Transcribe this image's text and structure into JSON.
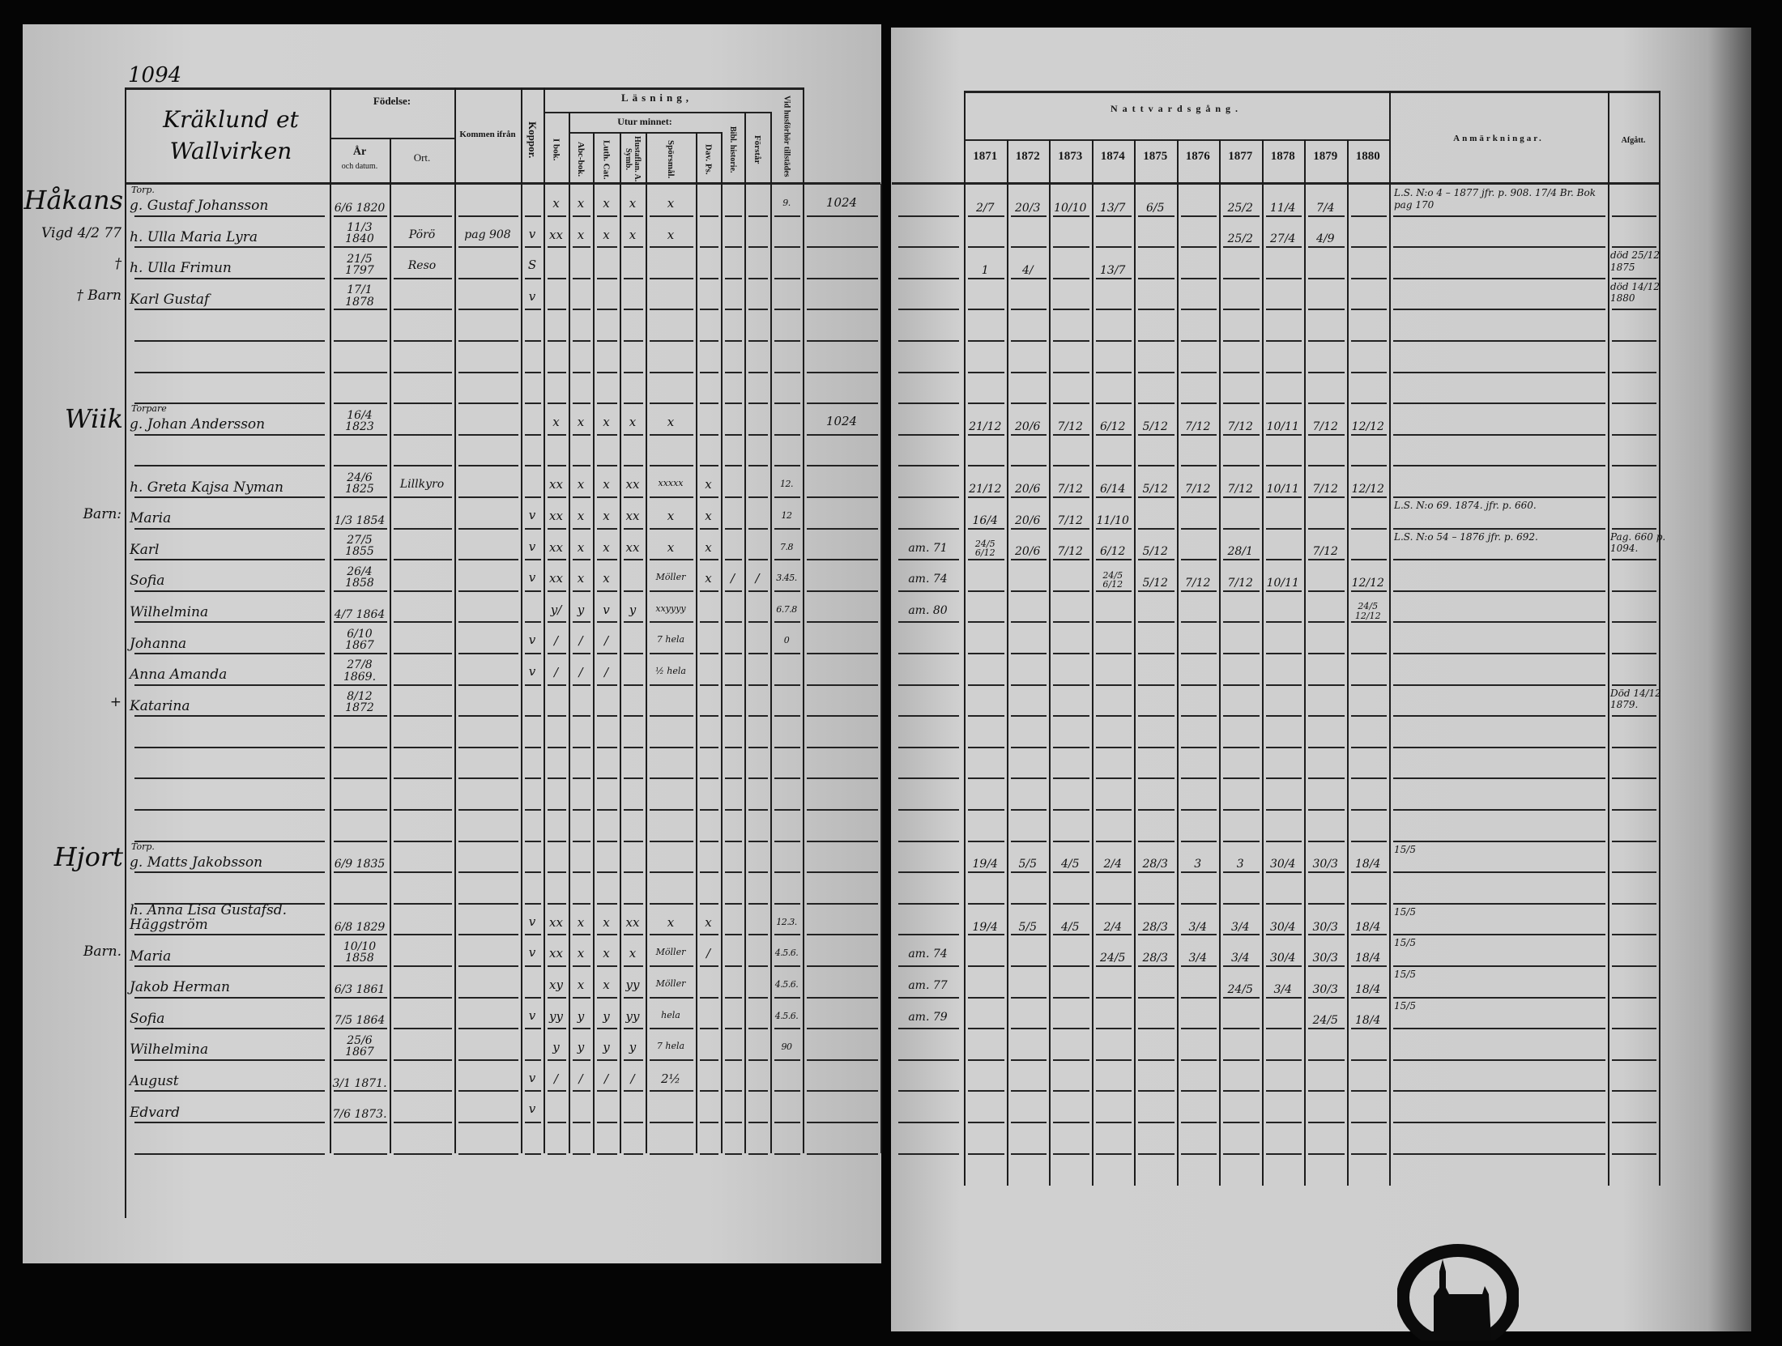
{
  "page_number": "1094",
  "village": "Kräklund et Wallvirken",
  "left_headers": {
    "fodelse": "Födelse:",
    "ar": "År",
    "och_datum": "och datum.",
    "ort": "Ort.",
    "kommen": "Kommen ifrån",
    "koppor": "Koppor.",
    "lasning": "Läsning,",
    "utur_minnet": "Utur minnet:",
    "i_bok": "I bok.",
    "abc": "Abc-bok.",
    "luth": "Luth. Cat.",
    "husta": "Hustaflan. A. Symb.",
    "spors": "Spörsmål.",
    "dav": "Dav. Ps.",
    "bibl": "Bibl. historie.",
    "forstar": "Förstår",
    "husforhor": "Vid husförhör tillstädes"
  },
  "right_headers": {
    "nattvard": "Nattvardsgång.",
    "years": [
      "1871",
      "1872",
      "1873",
      "1874",
      "1875",
      "1876",
      "1877",
      "1878",
      "1879",
      "1880"
    ],
    "anmarkningar": "Anmärkningar.",
    "afgatt": "Afgått."
  },
  "left_rows": [
    {
      "margin": "Håkans",
      "title": "Torp.",
      "name": "g. Gustaf Johansson",
      "birth": "6/6 1820",
      "ort": "",
      "from": "",
      "koppor": "",
      "marks": [
        "x",
        "x",
        "x",
        "x",
        "x",
        "",
        "",
        ""
      ],
      "husf": "9.",
      "ref": "1024"
    },
    {
      "margin": "Vigd 4/2 77",
      "name": "h. Ulla Maria Lyra",
      "birth": "11/3 1840",
      "ort": "Pörö",
      "from": "pag 908",
      "koppor": "v",
      "marks": [
        "xx",
        "x",
        "x",
        "x",
        "x",
        "",
        "",
        ""
      ],
      "husf": "",
      "ref": ""
    },
    {
      "margin": "†",
      "name": "h. Ulla Frimun",
      "birth": "21/5 1797",
      "ort": "Reso",
      "from": "",
      "koppor": "S",
      "marks": [
        "",
        "",
        "",
        "",
        "",
        "",
        "",
        ""
      ],
      "husf": "",
      "ref": ""
    },
    {
      "margin": "† Barn",
      "name": "Karl Gustaf",
      "birth": "17/1 1878",
      "ort": "",
      "from": "",
      "koppor": "v",
      "marks": [
        "",
        "",
        "",
        "",
        "",
        "",
        "",
        ""
      ],
      "husf": "",
      "ref": ""
    },
    {},
    {},
    {},
    {
      "margin": "Wiik",
      "title": "Torpare",
      "name": "g. Johan Andersson",
      "birth": "16/4 1823",
      "ort": "",
      "from": "",
      "koppor": "",
      "marks": [
        "x",
        "x",
        "x",
        "x",
        "x",
        "",
        "",
        ""
      ],
      "husf": "",
      "ref": "1024"
    },
    {},
    {
      "name": "h. Greta Kajsa Nyman",
      "birth": "24/6 1825",
      "ort": "Lillkyro",
      "from": "",
      "koppor": "",
      "marks": [
        "xx",
        "x",
        "x",
        "xx",
        "xxxxx",
        "x",
        "",
        ""
      ],
      "husf": "12.",
      "ref": ""
    },
    {
      "margin": "Barn:",
      "name": "Maria",
      "birth": "1/3 1854",
      "ort": "",
      "from": "",
      "koppor": "v",
      "marks": [
        "xx",
        "x",
        "x",
        "xx",
        "x",
        "x",
        "",
        ""
      ],
      "husf": "12",
      "ref": ""
    },
    {
      "name": "Karl",
      "birth": "27/5 1855",
      "ort": "",
      "from": "",
      "koppor": "v",
      "marks": [
        "xx",
        "x",
        "x",
        "xx",
        "x",
        "x",
        "",
        ""
      ],
      "husf": "7.8",
      "ref": ""
    },
    {
      "name": "Sofia",
      "birth": "26/4 1858",
      "ort": "",
      "from": "",
      "koppor": "v",
      "marks": [
        "xx",
        "x",
        "x",
        "",
        "Möller",
        "x",
        "/",
        "/"
      ],
      "husf": "3.45.",
      "ref": ""
    },
    {
      "name": "Wilhelmina",
      "birth": "4/7 1864",
      "ort": "",
      "from": "",
      "koppor": "",
      "marks": [
        "y/",
        "y",
        "v",
        "y",
        "xxyyyy",
        "",
        "",
        ""
      ],
      "husf": "6.7.8",
      "ref": ""
    },
    {
      "name": "Johanna",
      "birth": "6/10 1867",
      "ort": "",
      "from": "",
      "koppor": "v",
      "marks": [
        "/",
        "/",
        "/",
        "",
        "7 hela",
        "",
        "",
        ""
      ],
      "husf": "0",
      "ref": ""
    },
    {
      "name": "Anna Amanda",
      "birth": "27/8 1869.",
      "ort": "",
      "from": "",
      "koppor": "v",
      "marks": [
        "/",
        "/",
        "/",
        "",
        "½ hela",
        "",
        "",
        ""
      ],
      "husf": "",
      "ref": ""
    },
    {
      "margin": "+",
      "name": "Katarina",
      "birth": "8/12 1872",
      "ort": "",
      "from": "",
      "koppor": "",
      "marks": [
        "",
        "",
        "",
        "",
        "",
        "",
        "",
        ""
      ],
      "husf": "",
      "ref": ""
    },
    {},
    {},
    {},
    {},
    {
      "margin": "Hjort",
      "title": "Torp.",
      "name": "g. Matts Jakobsson",
      "birth": "6/9 1835",
      "ort": "",
      "from": "",
      "koppor": "",
      "marks": [
        "",
        "",
        "",
        "",
        "",
        "",
        "",
        ""
      ],
      "husf": "",
      "ref": ""
    },
    {},
    {
      "name": "h. Anna Lisa Gustafsd. Häggström",
      "birth": "6/8 1829",
      "ort": "",
      "from": "",
      "koppor": "v",
      "marks": [
        "xx",
        "x",
        "x",
        "xx",
        "x",
        "x",
        "",
        ""
      ],
      "husf": "12.3.",
      "ref": ""
    },
    {
      "margin": "Barn.",
      "name": "Maria",
      "birth": "10/10 1858",
      "ort": "",
      "from": "",
      "koppor": "v",
      "marks": [
        "xx",
        "x",
        "x",
        "x",
        "Möller",
        "/",
        "",
        ""
      ],
      "husf": "4.5.6.",
      "ref": ""
    },
    {
      "name": "Jakob Herman",
      "birth": "6/3 1861",
      "ort": "",
      "from": "",
      "koppor": "",
      "marks": [
        "xy",
        "x",
        "x",
        "yy",
        "Möller",
        "",
        "",
        ""
      ],
      "husf": "4.5.6.",
      "ref": ""
    },
    {
      "name": "Sofia",
      "birth": "7/5 1864",
      "ort": "",
      "from": "",
      "koppor": "v",
      "marks": [
        "yy",
        "y",
        "y",
        "yy",
        "hela",
        "",
        "",
        ""
      ],
      "husf": "4.5.6.",
      "ref": ""
    },
    {
      "name": "Wilhelmina",
      "birth": "25/6 1867",
      "ort": "",
      "from": "",
      "koppor": "",
      "marks": [
        "y",
        "y",
        "y",
        "y",
        "7 hela",
        "",
        "",
        ""
      ],
      "husf": "90",
      "ref": ""
    },
    {
      "name": "August",
      "birth": "3/1 1871.",
      "ort": "",
      "from": "",
      "koppor": "v",
      "marks": [
        "/",
        "/",
        "/",
        "/",
        "2½",
        "",
        "",
        ""
      ],
      "husf": "",
      "ref": ""
    },
    {
      "name": "Edvard",
      "birth": "7/6 1873.",
      "ort": "",
      "from": "",
      "koppor": "v",
      "marks": [
        "",
        "",
        "",
        "",
        "",
        "",
        "",
        ""
      ],
      "husf": "",
      "ref": ""
    }
  ],
  "right_rows": [
    {
      "pre": "",
      "years": [
        "2/7",
        "20/3",
        "10/10",
        "13/7",
        "6/5",
        "",
        "25/2",
        "11/4",
        "7/4",
        ""
      ],
      "remarks": "L.S. N:o 4 – 1877 jfr. p. 908.  17/4  Br. Bok pag 170",
      "afgatt": ""
    },
    {
      "years": [
        "",
        "",
        "",
        "",
        "",
        "",
        "25/2",
        "27/4",
        "4/9",
        ""
      ]
    },
    {
      "years": [
        "1",
        "4/",
        "",
        "13/7",
        "",
        "",
        "",
        "",
        "",
        ""
      ],
      "afgatt": "död 25/12 1875"
    },
    {
      "afgatt": "död 14/12 1880"
    },
    {},
    {},
    {},
    {
      "years": [
        "21/12",
        "20/6",
        "7/12",
        "6/12",
        "5/12",
        "7/12",
        "7/12",
        "10/11",
        "7/12",
        "12/12"
      ]
    },
    {},
    {
      "years": [
        "21/12",
        "20/6",
        "7/12",
        "6/14",
        "5/12",
        "7/12",
        "7/12",
        "10/11",
        "7/12",
        "12/12"
      ]
    },
    {
      "years": [
        "16/4",
        "20/6",
        "7/12",
        "11/10",
        "",
        "",
        "",
        "",
        "",
        ""
      ],
      "remarks": "L.S. N:o 69. 1874. jfr. p. 660."
    },
    {
      "pre": "am. 71",
      "years": [
        "24/5 6/12",
        "20/6",
        "7/12",
        "6/12",
        "5/12",
        "",
        "28/1",
        "",
        "7/12",
        ""
      ],
      "remarks": "L.S. N:o 54 – 1876 jfr. p. 692.",
      "afgatt": "Pag. 660 p. 1094."
    },
    {
      "pre": "am. 74",
      "years": [
        "",
        "",
        "",
        "24/5 6/12",
        "5/12",
        "7/12",
        "7/12",
        "10/11",
        "",
        "12/12"
      ]
    },
    {
      "pre": "am. 80",
      "years": [
        "",
        "",
        "",
        "",
        "",
        "",
        "",
        "",
        "",
        "24/5 12/12"
      ]
    },
    {},
    {},
    {
      "afgatt": "Död 14/12 1879."
    },
    {},
    {},
    {},
    {},
    {
      "years": [
        "19/4",
        "5/5",
        "4/5",
        "2/4",
        "28/3",
        "3",
        "3",
        "30/4",
        "30/3",
        "18/4"
      ],
      "remarks": "15/5"
    },
    {},
    {
      "years": [
        "19/4",
        "5/5",
        "4/5",
        "2/4",
        "28/3",
        "3/4",
        "3/4",
        "30/4",
        "30/3",
        "18/4"
      ],
      "remarks": "15/5"
    },
    {
      "pre": "am. 74",
      "years": [
        "",
        "",
        "",
        "24/5",
        "28/3",
        "3/4",
        "3/4",
        "30/4",
        "30/3",
        "18/4"
      ],
      "remarks": "15/5"
    },
    {
      "pre": "am. 77",
      "years": [
        "",
        "",
        "",
        "",
        "",
        "",
        "24/5",
        "3/4",
        "30/3",
        "18/4"
      ],
      "remarks": "15/5"
    },
    {
      "pre": "am. 79",
      "years": [
        "",
        "",
        "",
        "",
        "",
        "",
        "",
        "",
        "24/5",
        "18/4"
      ],
      "remarks": "15/5"
    },
    {},
    {},
    {},
    {}
  ],
  "stamp": {
    "type": "circular archive stamp with church silhouette"
  },
  "colors": {
    "paper": "#cccccc",
    "ink": "#111111",
    "background": "#050505"
  }
}
